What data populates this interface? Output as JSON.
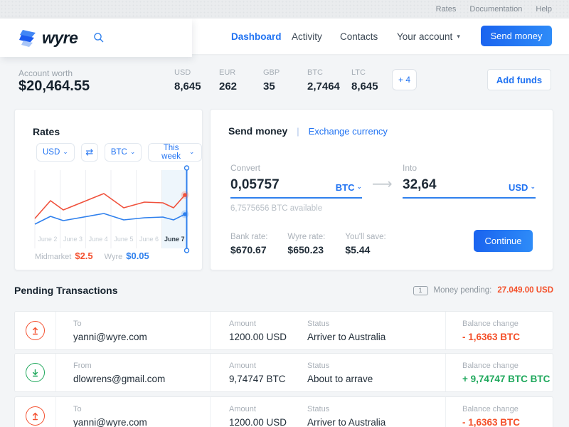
{
  "topbar": {
    "links": [
      {
        "label": "Rates"
      },
      {
        "label": "Documentation"
      },
      {
        "label": "Help"
      }
    ]
  },
  "header": {
    "logo_text": "wyre",
    "nav": [
      {
        "label": "Dashboard",
        "active": true
      },
      {
        "label": "Activity"
      },
      {
        "label": "Contacts"
      },
      {
        "label": "Your account"
      }
    ],
    "send_money_button": "Send money"
  },
  "account_summary": {
    "label": "Account worth",
    "worth": "$20,464.55",
    "currencies": [
      {
        "code": "USD",
        "value": "8,645"
      },
      {
        "code": "EUR",
        "value": "262"
      },
      {
        "code": "GBP",
        "value": "35"
      },
      {
        "code": "BTC",
        "value": "2,7464"
      },
      {
        "code": "LTC",
        "value": "8,645"
      }
    ],
    "more_badge": "+ 4",
    "add_funds_button": "Add funds"
  },
  "rates_card": {
    "title": "Rates",
    "from_currency": "USD",
    "to_currency": "BTC",
    "period": "This week",
    "legend": [
      {
        "label": "Midmarket",
        "value": "$2.5",
        "color": "#f4502f"
      },
      {
        "label": "Wyre",
        "value": "$0.05",
        "color": "#2f80ed"
      }
    ],
    "chart_data": {
      "type": "line",
      "x_labels": [
        "June 2",
        "June 3",
        "June 4",
        "June 5",
        "June 6",
        "June 7"
      ],
      "highlighted_label": "June 7",
      "grid": "vertical-only",
      "y_axis_visible": false,
      "series": [
        {
          "name": "Midmarket",
          "color": "#f0513c",
          "current_value": "$2.5",
          "points": [
            [
              0,
              68
            ],
            [
              22,
              43
            ],
            [
              40,
              56
            ],
            [
              97,
              33
            ],
            [
              125,
              53
            ],
            [
              154,
              45
            ],
            [
              180,
              46
            ],
            [
              195,
              53
            ],
            [
              211,
              35
            ]
          ]
        },
        {
          "name": "Wyre",
          "color": "#2f80ed",
          "current_value": "$0.05",
          "points": [
            [
              0,
              76
            ],
            [
              22,
              65
            ],
            [
              40,
              71
            ],
            [
              97,
              61
            ],
            [
              125,
              70
            ],
            [
              154,
              67
            ],
            [
              180,
              66
            ],
            [
              195,
              70
            ],
            [
              211,
              62
            ]
          ]
        }
      ],
      "slider_x": 213.5
    }
  },
  "send_card": {
    "active_tab": "Send money",
    "alt_tab": "Exchange currency",
    "tab_separator": "|",
    "convert": {
      "label": "Convert",
      "value": "0,05757",
      "currency": "BTC",
      "available": "6,7575656 BTC available"
    },
    "into": {
      "label": "Into",
      "value": "32,64",
      "currency": "USD"
    },
    "stats": [
      {
        "label": "Bank rate:",
        "value": "$670.67"
      },
      {
        "label": "Wyre rate:",
        "value": "$650.23"
      },
      {
        "label": "You'll save:",
        "value": "$5.44"
      }
    ],
    "continue_button": "Continue"
  },
  "pending": {
    "title": "Pending Transactions",
    "badge": "1",
    "money_pending_label": "Money pending:",
    "money_pending_value": "27.049.00 USD",
    "transactions": [
      {
        "direction": "out",
        "party_label": "To",
        "party": "yanni@wyre.com",
        "amount_label": "Amount",
        "amount": "1200.00 USD",
        "status_label": "Status",
        "status": "Arriver to Australia",
        "balance_label": "Balance change",
        "balance": "- 1,6363 BTC"
      },
      {
        "direction": "in",
        "party_label": "From",
        "party": "dlowrens@gmail.com",
        "amount_label": "Amount",
        "amount": "9,74747 BTC",
        "status_label": "Status",
        "status": "About to arrave",
        "balance_label": "Balance change",
        "balance": "+ 9,74747 BTC BTC"
      },
      {
        "direction": "out",
        "party_label": "To",
        "party": "yanni@wyre.com",
        "amount_label": "Amount",
        "amount": "1200.00 USD",
        "status_label": "Status",
        "status": "Arriver to Australia",
        "balance_label": "Balance change",
        "balance": "- 1,6363 BTC"
      }
    ]
  },
  "icons": {
    "caret_down": "▾",
    "chevron_down": "⌄",
    "swap": "⇄",
    "arrow_right": "⟶"
  },
  "colors": {
    "accent_blue": "#2173f2",
    "negative": "#f4502a",
    "positive": "#1fa85c",
    "chart_red": "#f0513c",
    "chart_blue": "#2f80ed"
  }
}
